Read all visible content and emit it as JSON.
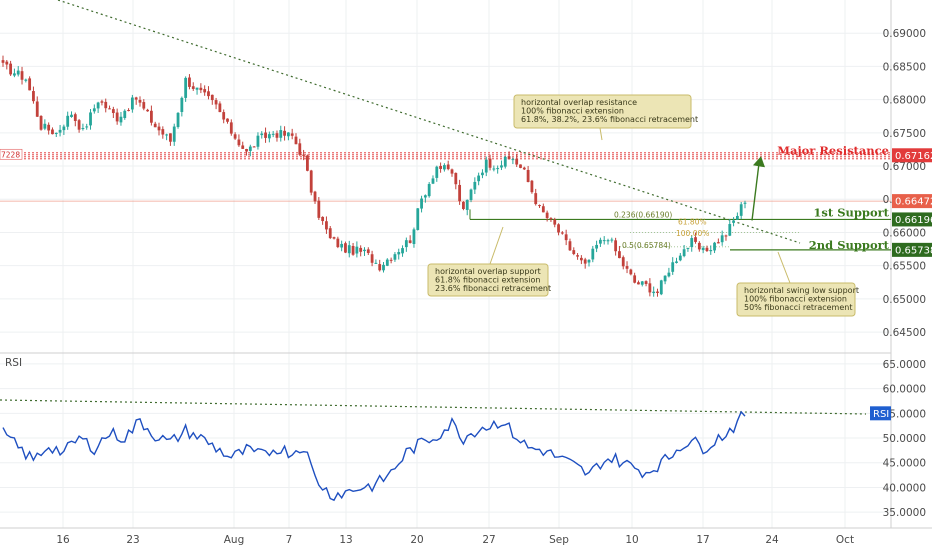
{
  "chart_data": {
    "type": "candlestick",
    "colors": {
      "up": "#26a69a",
      "down": "#c2413b",
      "rsi": "#1e4fc0",
      "support": "#3b7a1f",
      "resistance": "#e02c2c",
      "fib_line": "#5a9c3a",
      "note_bg": "#ece5b5",
      "note_border": "#c9bb6a"
    },
    "price_axis": {
      "ticks": [
        "0.69000",
        "0.68500",
        "0.68000",
        "0.67500",
        "0.67000",
        "0.66500",
        "0.66000",
        "0.65500",
        "0.65000",
        "0.64500"
      ],
      "ylim": [
        0.642,
        0.695
      ]
    },
    "x_ticks": [
      "16",
      "23",
      "Aug",
      "7",
      "13",
      "20",
      "27",
      "Sep",
      "10",
      "17",
      "24",
      "Oct"
    ],
    "price_anchors": [
      [
        0,
        0.685
      ],
      [
        6,
        0.6832
      ],
      [
        10,
        0.676
      ],
      [
        14,
        0.675
      ],
      [
        18,
        0.678
      ],
      [
        21,
        0.6752
      ],
      [
        25,
        0.68
      ],
      [
        30,
        0.6773
      ],
      [
        35,
        0.6802
      ],
      [
        40,
        0.676
      ],
      [
        44,
        0.6738
      ],
      [
        48,
        0.683
      ],
      [
        52,
        0.681
      ],
      [
        56,
        0.679
      ],
      [
        59,
        0.676
      ],
      [
        64,
        0.672
      ],
      [
        67,
        0.674
      ],
      [
        71,
        0.675
      ],
      [
        76,
        0.6745
      ],
      [
        79,
        0.6712
      ],
      [
        82,
        0.664
      ],
      [
        86,
        0.659
      ],
      [
        90,
        0.6575
      ],
      [
        95,
        0.657
      ],
      [
        99,
        0.655
      ],
      [
        103,
        0.657
      ],
      [
        107,
        0.659
      ],
      [
        110,
        0.665
      ],
      [
        114,
        0.67
      ],
      [
        118,
        0.669
      ],
      [
        121,
        0.663
      ],
      [
        124,
        0.668
      ],
      [
        127,
        0.6705
      ],
      [
        130,
        0.6702
      ],
      [
        134,
        0.6712
      ],
      [
        137,
        0.669
      ],
      [
        141,
        0.6635
      ],
      [
        145,
        0.661
      ],
      [
        149,
        0.6575
      ],
      [
        153,
        0.6548
      ],
      [
        156,
        0.658
      ],
      [
        159,
        0.6595
      ],
      [
        162,
        0.656
      ],
      [
        166,
        0.6525
      ],
      [
        169,
        0.652
      ],
      [
        172,
        0.651
      ],
      [
        175,
        0.6545
      ],
      [
        178,
        0.657
      ],
      [
        181,
        0.6585
      ],
      [
        184,
        0.657
      ],
      [
        187,
        0.6583
      ],
      [
        190,
        0.6598
      ],
      [
        193,
        0.6627
      ],
      [
        195,
        0.665
      ]
    ],
    "levels": [
      {
        "name": "Major Resistance",
        "price": 0.67162,
        "tag": "0.67162"
      },
      {
        "name": "1st Support",
        "price": 0.66196,
        "tag": "0.66196"
      },
      {
        "name": "2nd Support",
        "price": 0.65738,
        "tag": "0.65738"
      }
    ],
    "last_price": {
      "price": 0.66472,
      "tag": "0.66472"
    },
    "left_cut_label": "7228",
    "fib_labels": [
      "0.236(0.66190)",
      "61.80%",
      "100.00%",
      "0.5(0.65784)"
    ],
    "annotations": [
      {
        "name": "resistance-note",
        "lines": [
          "horizontal overlap resistance",
          "100% fibonacci extension",
          "61.8%, 38.2%, 23.6% fibonacci retracement"
        ]
      },
      {
        "name": "support1-note",
        "lines": [
          "horizontal overlap support",
          "61.8% fibonacci extension",
          "23.6% fibonacci retracement"
        ]
      },
      {
        "name": "support2-note",
        "lines": [
          "horizontal swing low support",
          "100% fibonacci extension",
          "50% fibonacci retracement"
        ]
      }
    ],
    "rsi": {
      "label": "RSI",
      "ticks": [
        "65.0000",
        "60.0000",
        "55.0000",
        "50.0000",
        "45.0000",
        "40.0000",
        "35.0000"
      ],
      "ylim": [
        32.0,
        67.0
      ],
      "anchors": [
        [
          0,
          51.0
        ],
        [
          4,
          48.0
        ],
        [
          8,
          45.5
        ],
        [
          12,
          48.5
        ],
        [
          16,
          47.0
        ],
        [
          20,
          50.0
        ],
        [
          24,
          48.0
        ],
        [
          28,
          51.0
        ],
        [
          32,
          50.0
        ],
        [
          36,
          53.5
        ],
        [
          40,
          50.5
        ],
        [
          44,
          49.0
        ],
        [
          48,
          51.5
        ],
        [
          52,
          50.0
        ],
        [
          56,
          48.0
        ],
        [
          60,
          46.0
        ],
        [
          64,
          47.5
        ],
        [
          68,
          46.5
        ],
        [
          72,
          48.0
        ],
        [
          76,
          47.0
        ],
        [
          79,
          48.5
        ],
        [
          82,
          42.0
        ],
        [
          86,
          38.5
        ],
        [
          90,
          39.0
        ],
        [
          94,
          40.0
        ],
        [
          98,
          40.5
        ],
        [
          102,
          43.0
        ],
        [
          106,
          47.0
        ],
        [
          110,
          49.0
        ],
        [
          114,
          50.5
        ],
        [
          118,
          53.0
        ],
        [
          121,
          50.0
        ],
        [
          125,
          52.0
        ],
        [
          128,
          52.5
        ],
        [
          131,
          53.5
        ],
        [
          134,
          51.0
        ],
        [
          138,
          48.0
        ],
        [
          142,
          47.5
        ],
        [
          146,
          46.0
        ],
        [
          150,
          44.5
        ],
        [
          154,
          42.5
        ],
        [
          157,
          45.0
        ],
        [
          160,
          46.0
        ],
        [
          163,
          45.0
        ],
        [
          166,
          44.0
        ],
        [
          169,
          43.0
        ],
        [
          172,
          44.5
        ],
        [
          175,
          46.0
        ],
        [
          178,
          48.5
        ],
        [
          181,
          49.5
        ],
        [
          184,
          48.0
        ],
        [
          187,
          49.5
        ],
        [
          190,
          51.0
        ],
        [
          193,
          53.0
        ],
        [
          195,
          55.0
        ]
      ],
      "value_tag": "RSI"
    }
  }
}
